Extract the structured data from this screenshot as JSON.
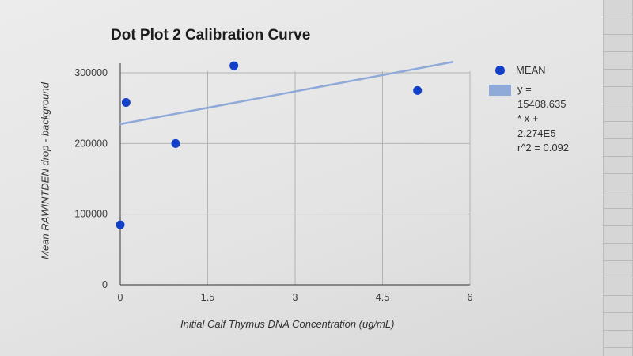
{
  "chart_data": {
    "type": "scatter",
    "title": "Dot Plot 2 Calibration Curve",
    "xlabel": "Initial Calf Thymus DNA Concentration (ug/mL)",
    "ylabel": "Mean RAWINTDEN drop - background",
    "xlim": [
      0,
      6
    ],
    "ylim": [
      0,
      300000
    ],
    "x_ticks": [
      "0",
      "1.5",
      "3",
      "4.5",
      "6"
    ],
    "y_ticks": [
      "0",
      "100000",
      "200000",
      "300000"
    ],
    "grid": true,
    "legend_position": "right",
    "series": [
      {
        "name": "MEAN",
        "type": "scatter",
        "color": "#1240c8",
        "points": [
          {
            "x": 0,
            "y": 85000
          },
          {
            "x": 0.1,
            "y": 258000
          },
          {
            "x": 0.95,
            "y": 200000
          },
          {
            "x": 1.95,
            "y": 310000
          },
          {
            "x": 5.1,
            "y": 275000
          }
        ]
      },
      {
        "name": "Linear trendline",
        "type": "line",
        "color": "#8fa9d8",
        "slope": 15408.635,
        "intercept": 227400,
        "x_range": [
          0,
          5.7
        ],
        "r_squared": 0.092
      }
    ],
    "legend": {
      "series_label": "MEAN",
      "trend_lines": [
        "y =",
        "15408.635",
        "* x +",
        "2.274E5",
        "r^2 = 0.092"
      ]
    }
  }
}
